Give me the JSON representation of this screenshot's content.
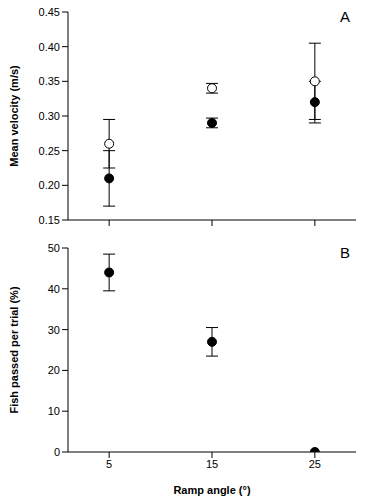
{
  "chart_data": [
    {
      "type": "scatter",
      "annotation": "A",
      "y_label": "Mean velocity (m/s)",
      "x": [
        5,
        15,
        25
      ],
      "xlim": [
        1,
        29
      ],
      "xticks": [
        5,
        15,
        25
      ],
      "ylim": [
        0.15,
        0.45
      ],
      "yticks": [
        0.15,
        {
          "value": 0.2,
          "label": "0.20"
        },
        0.25,
        {
          "value": 0.3,
          "label": "0.30"
        },
        0.35,
        {
          "value": 0.4,
          "label": "0.40"
        },
        0.45
      ],
      "tick_labels": "y",
      "grid": false,
      "series": [
        {
          "color": "#000000",
          "marker": "filled_circle",
          "values": [
            0.21,
            0.29,
            0.32
          ],
          "errors": [
            0.04,
            0.007,
            0.03
          ]
        },
        {
          "color": "#000000",
          "marker": "open_circle",
          "values": [
            0.26,
            0.34,
            0.35
          ],
          "errors": [
            0.035,
            0.007,
            0.055
          ]
        }
      ]
    },
    {
      "type": "scatter",
      "annotation": "B",
      "y_label": "Fish passed per trial (%)",
      "x_label": "Ramp angle (°)",
      "x": [
        5,
        15,
        25
      ],
      "xlim": [
        1,
        29
      ],
      "xticks": [
        5,
        15,
        25
      ],
      "ylim": [
        0,
        50
      ],
      "yticks": [
        0,
        10,
        20,
        30,
        40,
        50
      ],
      "grid": false,
      "series": [
        {
          "color": "#000000",
          "marker": "filled_circle",
          "values": [
            44,
            27,
            0
          ],
          "errors": [
            4.5,
            3.5,
            0
          ]
        }
      ]
    }
  ]
}
